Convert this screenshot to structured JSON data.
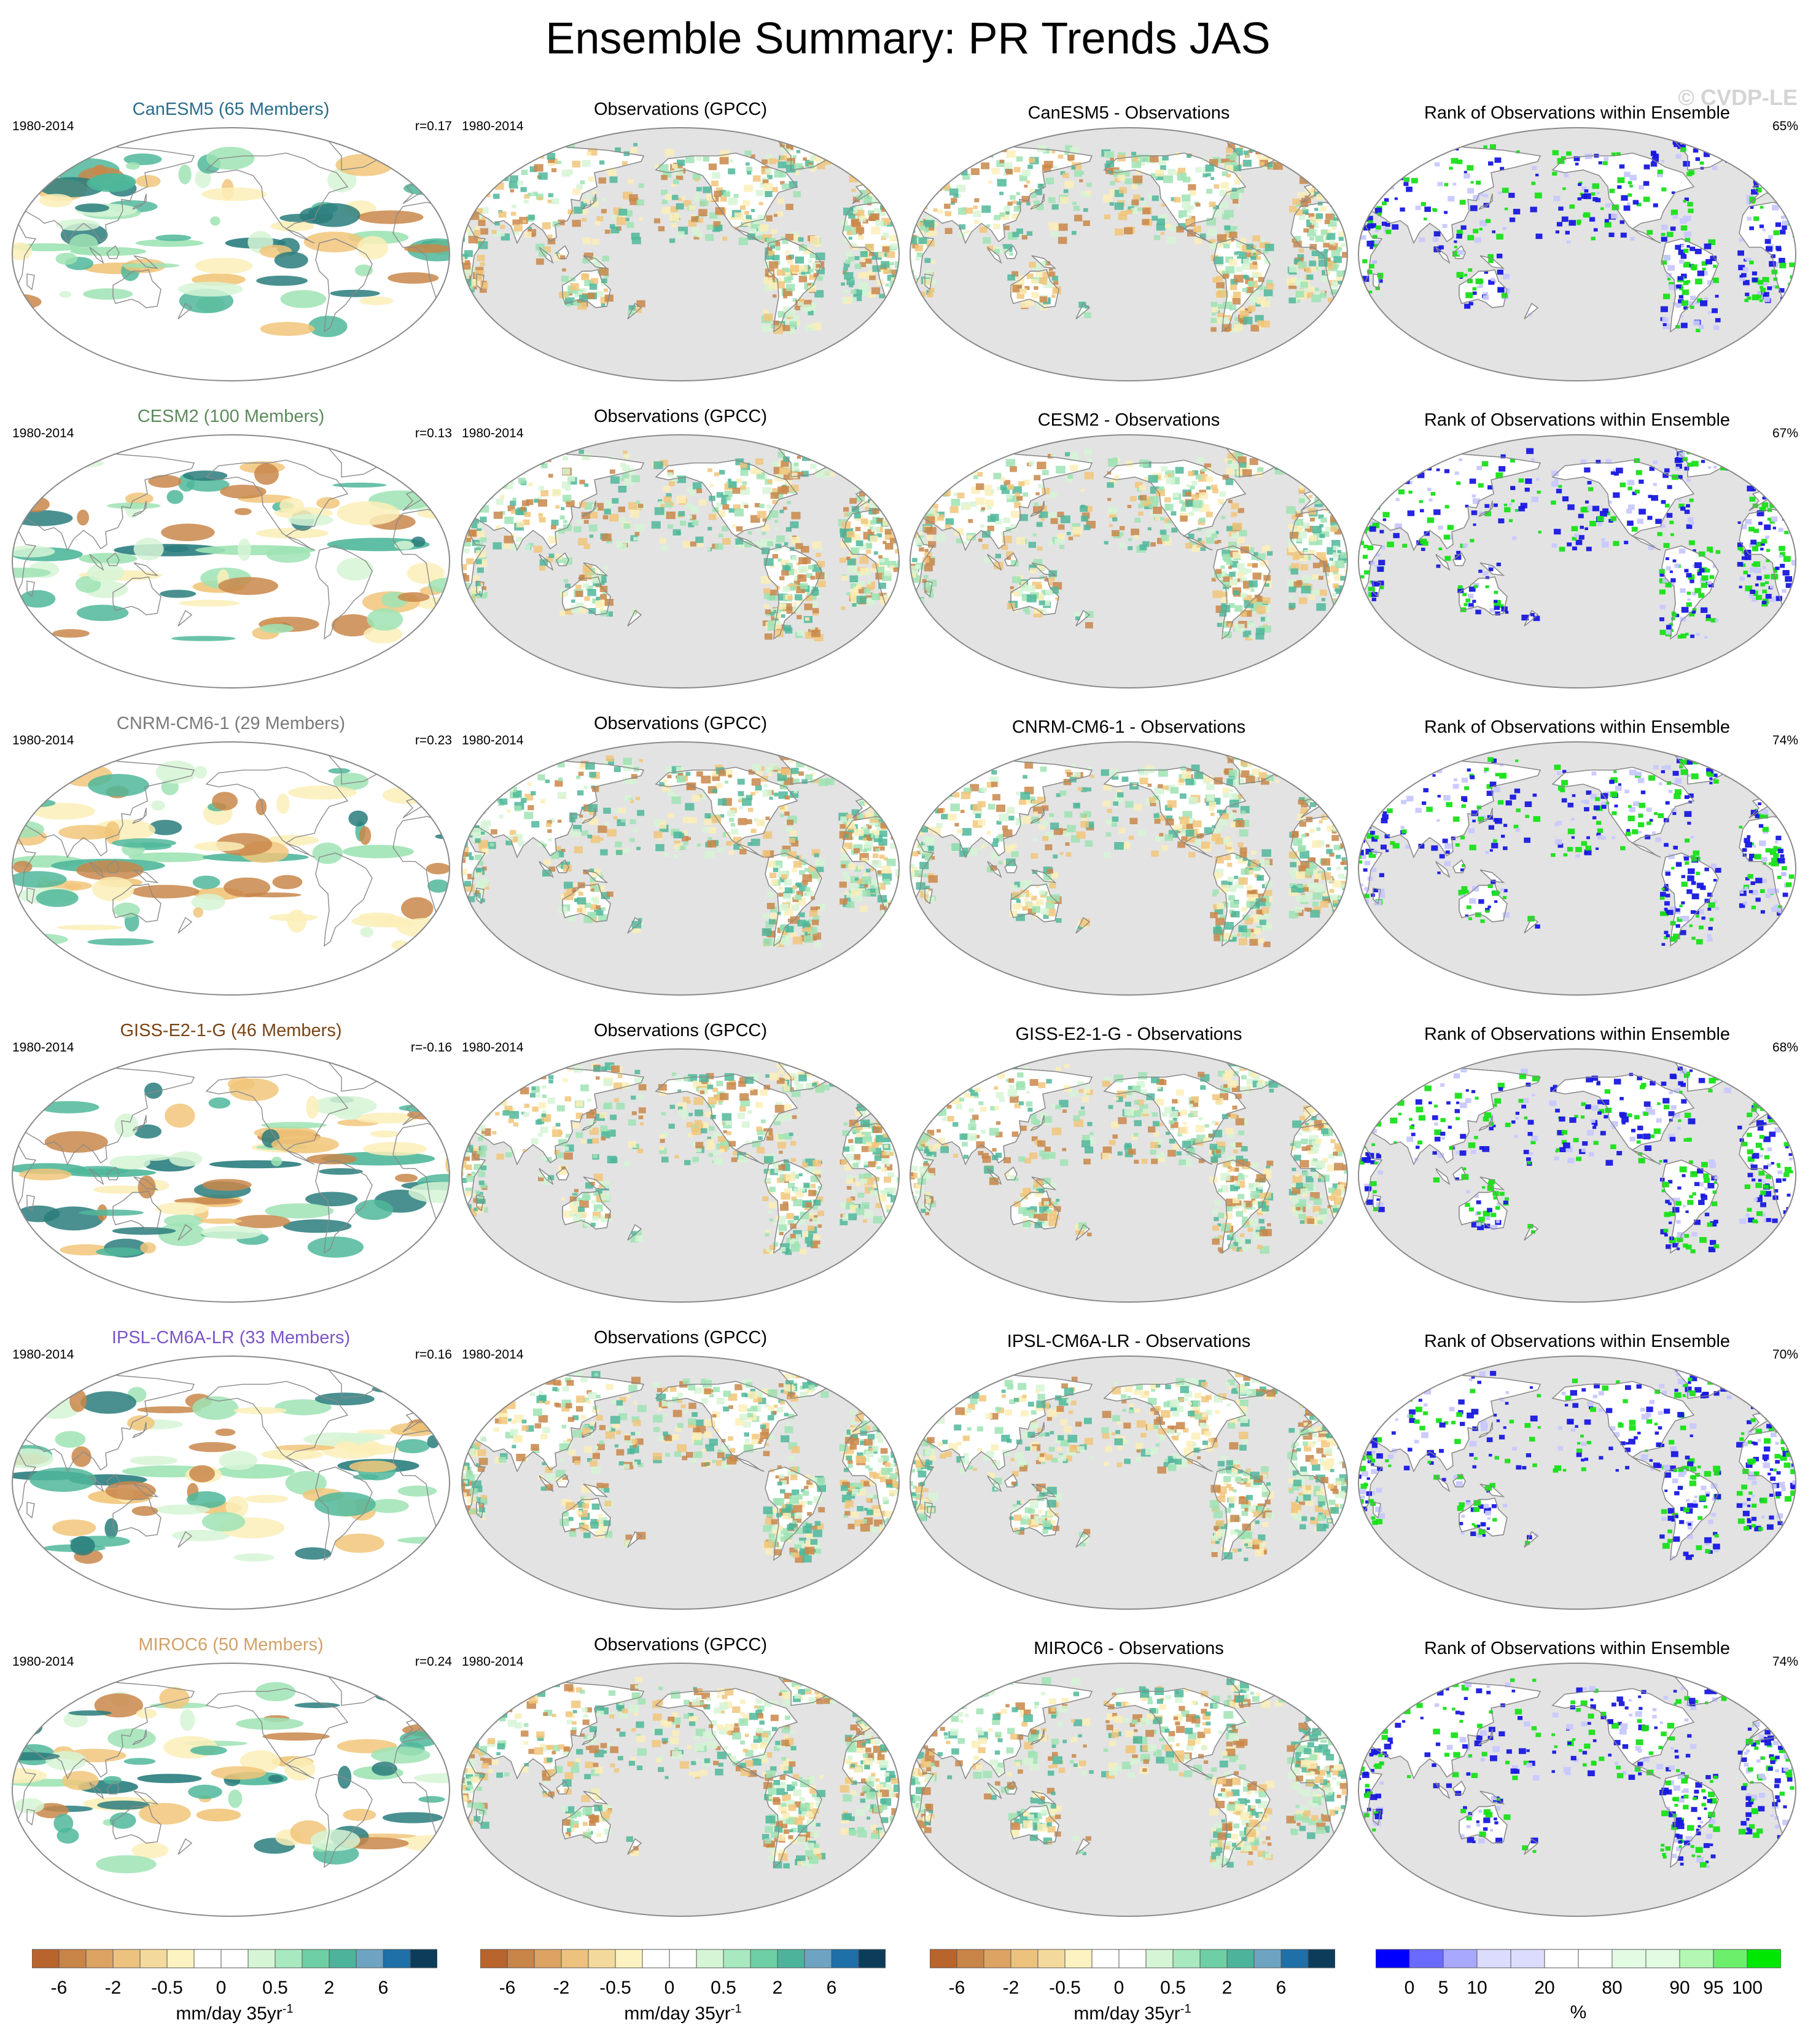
{
  "title": "Ensemble Summary: PR Trends JAS",
  "watermark": "© CVDP-LE",
  "rows": [
    {
      "model": "CanESM5 (65 Members)",
      "model_color": "#2a6e8c",
      "period": "1980-2014",
      "r": "r=0.17",
      "obs_title": "Observations (GPCC)",
      "obs_period": "1980-2014",
      "diff_title": "CanESM5 - Observations",
      "rank_title": "Rank of Observations within Ensemble",
      "rank_pct": "65%"
    },
    {
      "model": "CESM2 (100 Members)",
      "model_color": "#5c8a5c",
      "period": "1980-2014",
      "r": "r=0.13",
      "obs_title": "Observations (GPCC)",
      "obs_period": "1980-2014",
      "diff_title": "CESM2 - Observations",
      "rank_title": "Rank of Observations within Ensemble",
      "rank_pct": "67%"
    },
    {
      "model": "CNRM-CM6-1 (29 Members)",
      "model_color": "#7a7a7a",
      "period": "1980-2014",
      "r": "r=0.23",
      "obs_title": "Observations (GPCC)",
      "obs_period": "1980-2014",
      "diff_title": "CNRM-CM6-1 - Observations",
      "rank_title": "Rank of Observations within Ensemble",
      "rank_pct": "74%"
    },
    {
      "model": "GISS-E2-1-G (46 Members)",
      "model_color": "#7a4416",
      "period": "1980-2014",
      "r": "r=-0.16",
      "obs_title": "Observations (GPCC)",
      "obs_period": "1980-2014",
      "diff_title": "GISS-E2-1-G - Observations",
      "rank_title": "Rank of Observations within Ensemble",
      "rank_pct": "68%"
    },
    {
      "model": "IPSL-CM6A-LR (33 Members)",
      "model_color": "#7b55c8",
      "period": "1980-2014",
      "r": "r=0.16",
      "obs_title": "Observations (GPCC)",
      "obs_period": "1980-2014",
      "diff_title": "IPSL-CM6A-LR - Observations",
      "rank_title": "Rank of Observations within Ensemble",
      "rank_pct": "70%"
    },
    {
      "model": "MIROC6 (50 Members)",
      "model_color": "#d2a068",
      "period": "1980-2014",
      "r": "r=0.24",
      "obs_title": "Observations (GPCC)",
      "obs_period": "1980-2014",
      "diff_title": "MIROC6 - Observations",
      "rank_title": "Rank of Observations within Ensemble",
      "rank_pct": "74%"
    }
  ],
  "colors": {
    "land_mask": "#e3e3e3",
    "coast": "#8a8a8a",
    "trend_pos": [
      "#d6f5d6",
      "#9fe3b4",
      "#4fb79a",
      "#2a7d7d"
    ],
    "trend_neg": [
      "#fbeeb8",
      "#f1c57a",
      "#c9874a"
    ],
    "rank_low": "#1818e0",
    "rank_high": "#18e018"
  },
  "colorbars": [
    {
      "ticks": [
        "-6",
        "-2",
        "-0.5",
        "0",
        "0.5",
        "2",
        "6"
      ],
      "unit": "mm/day 35yr",
      "unit_sup": "-1",
      "colors": [
        "#b8642c",
        "#c98448",
        "#dca363",
        "#edc27f",
        "#f3da9c",
        "#fcf2c2",
        "#ffffff",
        "#ffffff",
        "#d6f5d6",
        "#a8e9c0",
        "#6fcfa4",
        "#4cb49a",
        "#6ea3c2",
        "#1f6fa8",
        "#0c3c5a"
      ]
    },
    {
      "ticks": [
        "-6",
        "-2",
        "-0.5",
        "0",
        "0.5",
        "2",
        "6"
      ],
      "unit": "mm/day 35yr",
      "unit_sup": "-1",
      "colors": [
        "#b8642c",
        "#c98448",
        "#dca363",
        "#edc27f",
        "#f3da9c",
        "#fcf2c2",
        "#ffffff",
        "#ffffff",
        "#d6f5d6",
        "#a8e9c0",
        "#6fcfa4",
        "#4cb49a",
        "#6ea3c2",
        "#1f6fa8",
        "#0c3c5a"
      ]
    },
    {
      "ticks": [
        "-6",
        "-2",
        "-0.5",
        "0",
        "0.5",
        "2",
        "6"
      ],
      "unit": "mm/day 35yr",
      "unit_sup": "-1",
      "colors": [
        "#b8642c",
        "#c98448",
        "#dca363",
        "#edc27f",
        "#f3da9c",
        "#fcf2c2",
        "#ffffff",
        "#ffffff",
        "#d6f5d6",
        "#a8e9c0",
        "#6fcfa4",
        "#4cb49a",
        "#6ea3c2",
        "#1f6fa8",
        "#0c3c5a"
      ]
    },
    {
      "ticks": [
        "0",
        "5",
        "10",
        "20",
        "80",
        "90",
        "95",
        "100"
      ],
      "unit": "%",
      "unit_sup": "",
      "colors": [
        "#0000ff",
        "#6a6aff",
        "#a8a8ff",
        "#dcdcff",
        "#dcdcff",
        "#ffffff",
        "#ffffff",
        "#e2fbe2",
        "#e2fbe2",
        "#b4f7b4",
        "#6cf06c",
        "#00e800"
      ]
    }
  ]
}
